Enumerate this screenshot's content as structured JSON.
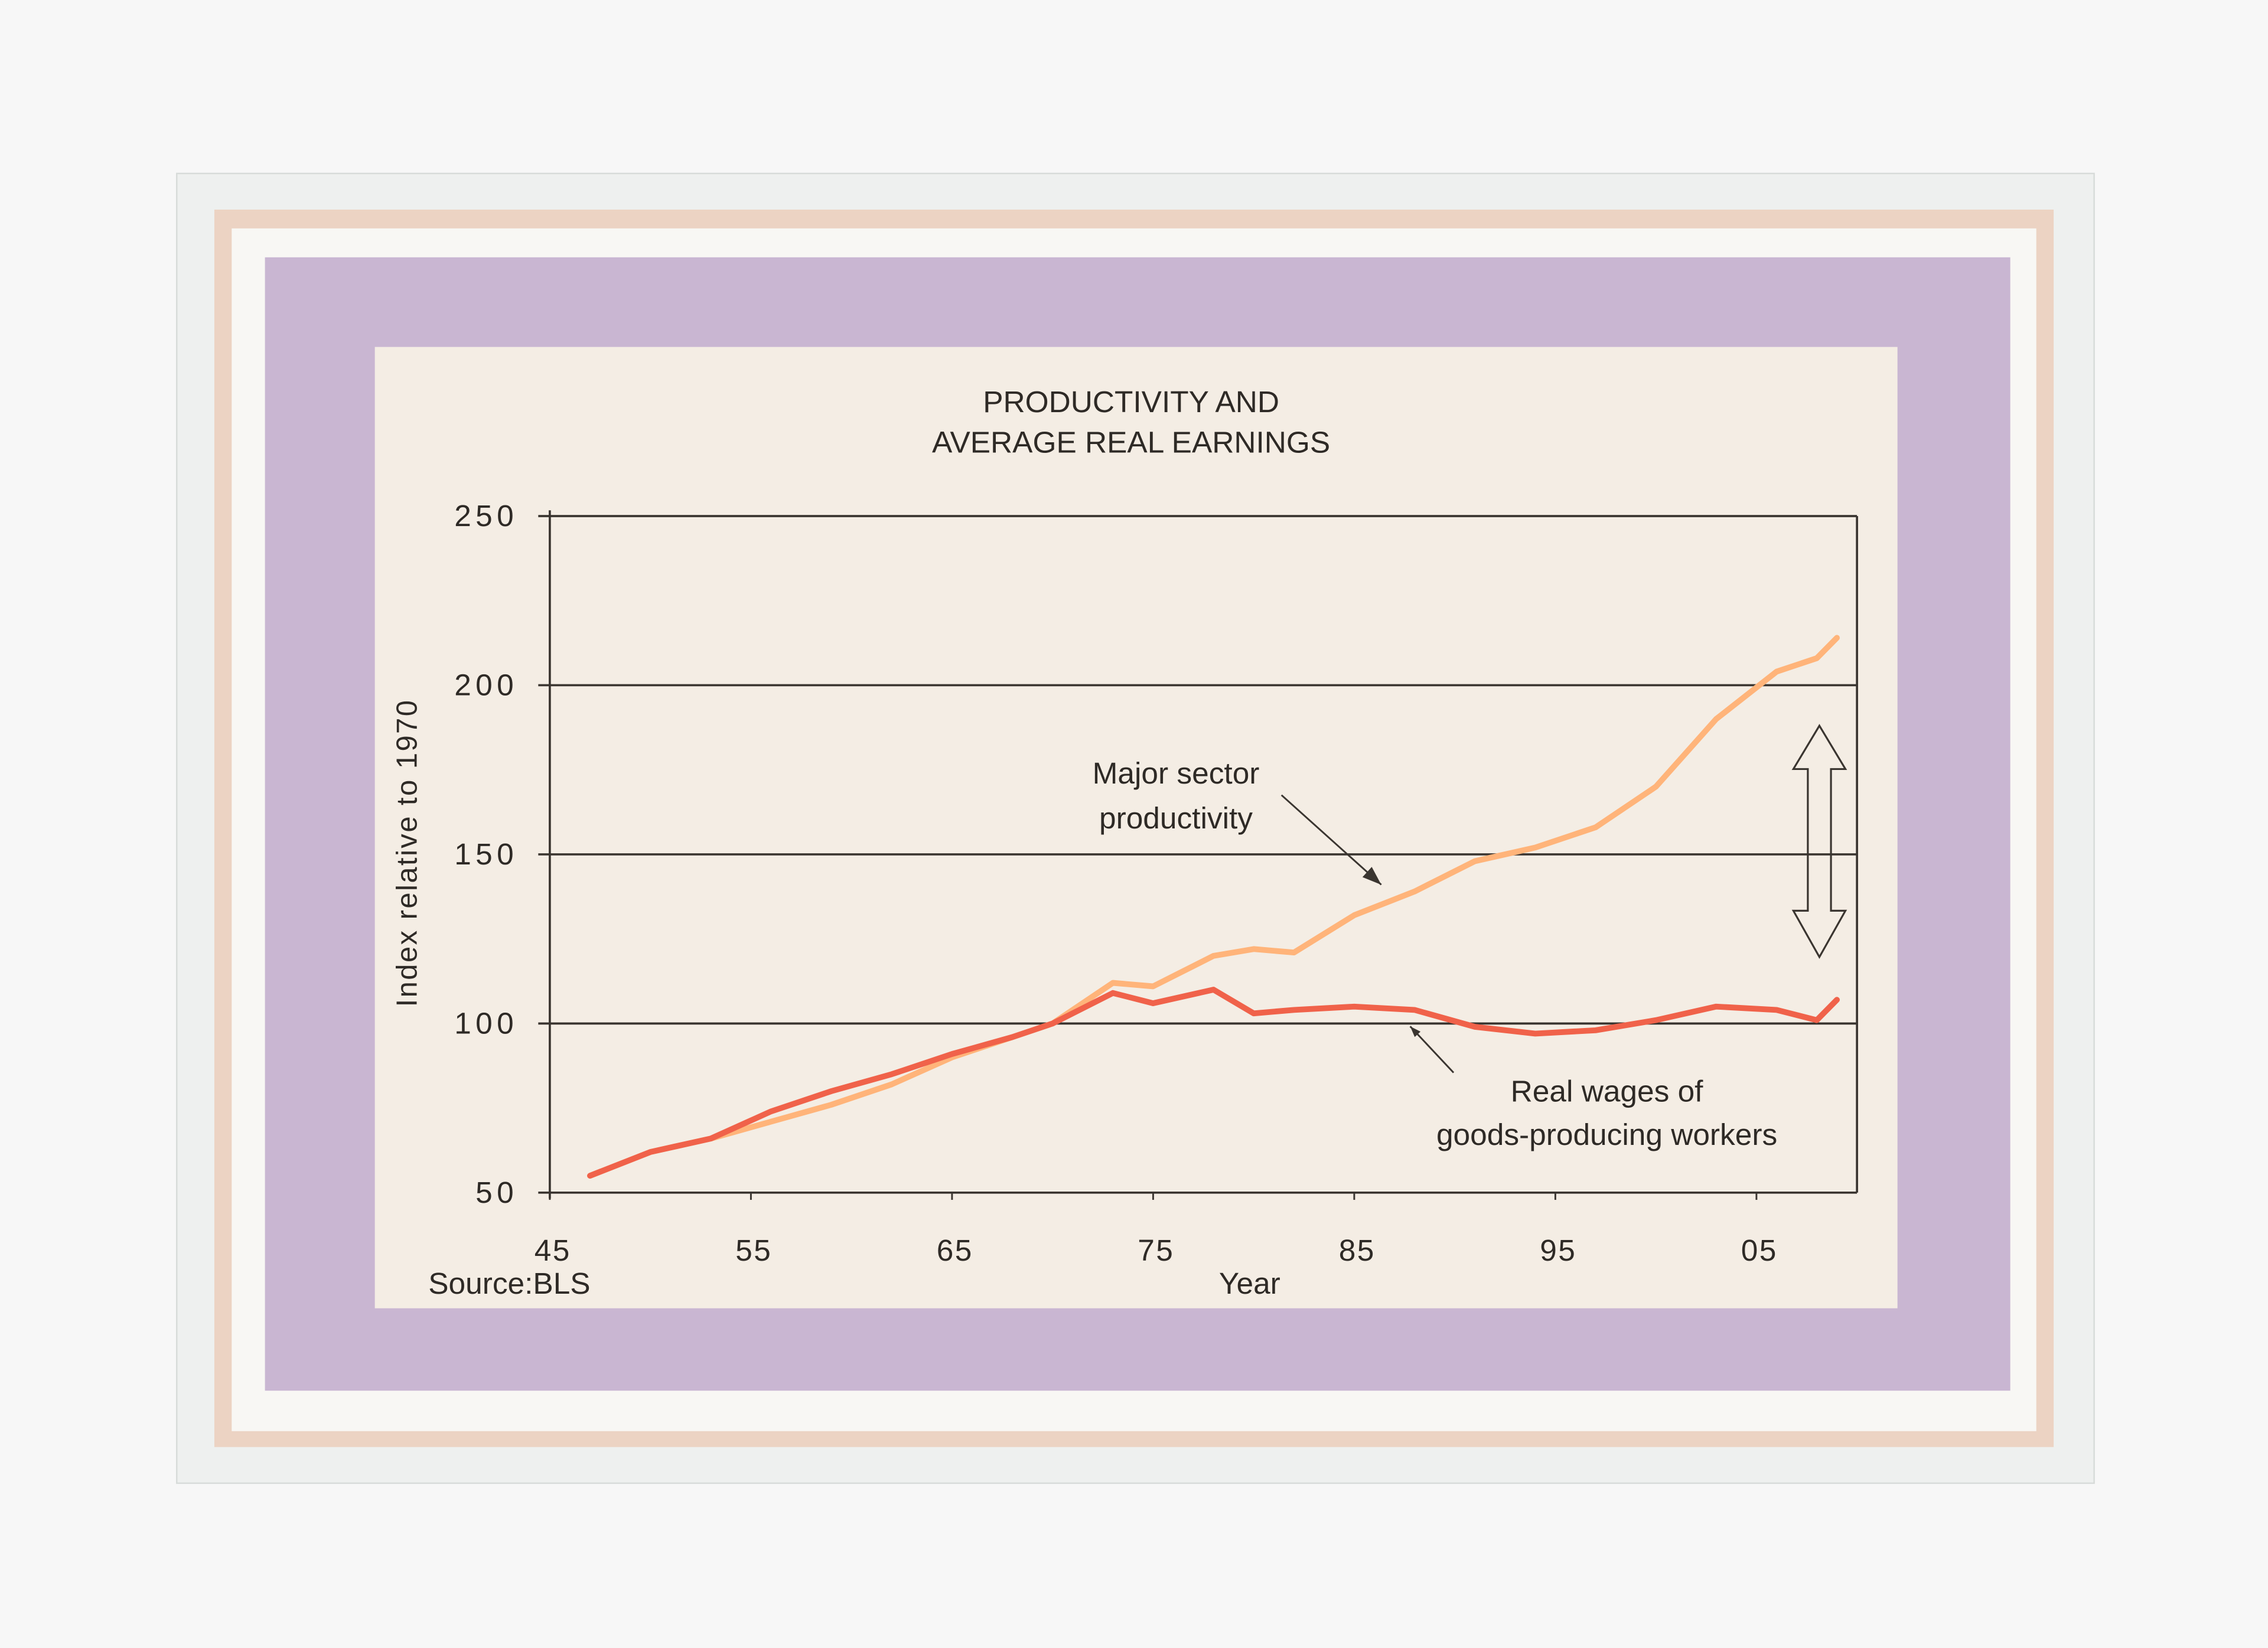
{
  "chart_data": {
    "type": "line",
    "title": [
      "PRODUCTIVITY AND",
      "AVERAGE REAL EARNINGS"
    ],
    "y_label": "Index relative to 1970",
    "x_label": "Year",
    "source": "Source:BLS",
    "x": [
      1947,
      1950,
      1953,
      1956,
      1959,
      1962,
      1965,
      1968,
      1970,
      1973,
      1975,
      1978,
      1980,
      1982,
      1985,
      1988,
      1991,
      1994,
      1997,
      2000,
      2003,
      2006,
      2008,
      2009
    ],
    "series": [
      {
        "color": "#ffb47a",
        "values": [
          55,
          62,
          66,
          71,
          76,
          82,
          90,
          96,
          100,
          112,
          111,
          120,
          122,
          121,
          132,
          139,
          148,
          152,
          158,
          170,
          190,
          204,
          208,
          214
        ]
      },
      {
        "color": "#f0624a",
        "values": [
          55,
          62,
          66,
          74,
          80,
          85,
          91,
          96,
          100,
          109,
          106,
          110,
          103,
          104,
          105,
          104,
          99,
          97,
          98,
          101,
          105,
          104,
          101,
          107
        ]
      }
    ],
    "annotations": [
      {
        "text": [
          "Major sector",
          "productivity"
        ],
        "series": 0
      },
      {
        "text": [
          "Real wages of",
          "goods-producing workers"
        ],
        "series": 1
      }
    ],
    "xlim": [
      1945,
      2010
    ],
    "xticks": [
      {
        "value": 1945,
        "label": "45"
      },
      {
        "value": 1955,
        "label": "55"
      },
      {
        "value": 1965,
        "label": "65"
      },
      {
        "value": 1975,
        "label": "75"
      },
      {
        "value": 1985,
        "label": "85"
      },
      {
        "value": 1995,
        "label": "95"
      },
      {
        "value": 2005,
        "label": "05"
      }
    ],
    "ylim": [
      50,
      250
    ],
    "yticks": [
      50,
      100,
      150,
      200,
      250
    ],
    "grid": true
  }
}
